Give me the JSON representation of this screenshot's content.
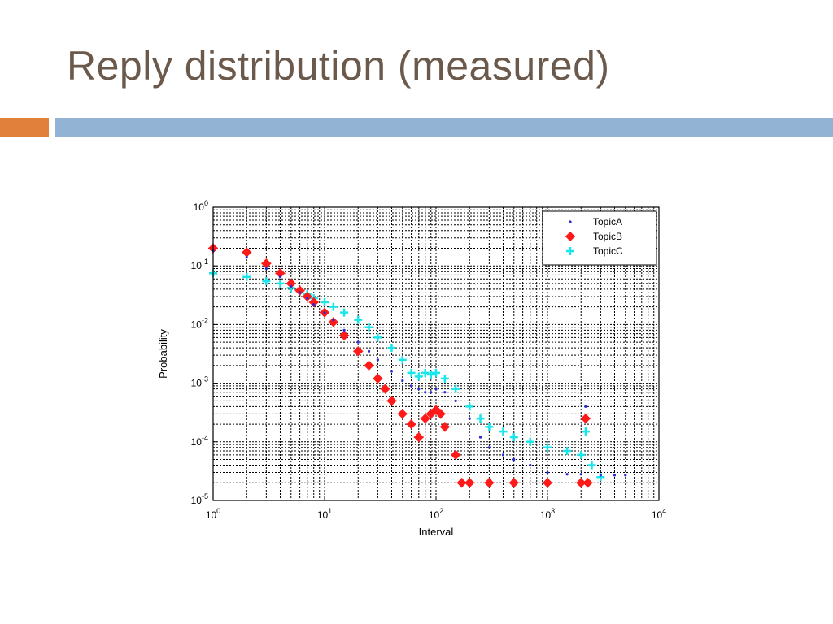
{
  "slide": {
    "title": "Reply distribution (measured)"
  },
  "colors": {
    "title": "#6b5a4c",
    "accent_orange": "#e0803b",
    "accent_blue": "#92b3d3"
  },
  "chart_data": {
    "type": "scatter",
    "title": "",
    "xlabel": "Interval",
    "ylabel": "Probability",
    "xscale": "log",
    "yscale": "log",
    "xlim": [
      1,
      10000
    ],
    "ylim": [
      1e-05,
      1
    ],
    "x_tick_labels": [
      {
        "base": "10",
        "exp": "0"
      },
      {
        "base": "10",
        "exp": "1"
      },
      {
        "base": "10",
        "exp": "2"
      },
      {
        "base": "10",
        "exp": "3"
      },
      {
        "base": "10",
        "exp": "4"
      }
    ],
    "y_tick_labels": [
      {
        "base": "10",
        "exp": "0"
      },
      {
        "base": "10",
        "exp": "-1"
      },
      {
        "base": "10",
        "exp": "-2"
      },
      {
        "base": "10",
        "exp": "-3"
      },
      {
        "base": "10",
        "exp": "-4"
      },
      {
        "base": "10",
        "exp": "-5"
      }
    ],
    "grid": true,
    "legend_position": "top-right",
    "series": [
      {
        "name": "TopicA",
        "marker": "dot",
        "color": "#2b2bd6",
        "points": [
          [
            1,
            0.18
          ],
          [
            2,
            0.14
          ],
          [
            3,
            0.09
          ],
          [
            4,
            0.065
          ],
          [
            5,
            0.045
          ],
          [
            6,
            0.035
          ],
          [
            7,
            0.028
          ],
          [
            8,
            0.022
          ],
          [
            10,
            0.016
          ],
          [
            12,
            0.012
          ],
          [
            15,
            0.008
          ],
          [
            20,
            0.005
          ],
          [
            25,
            0.0035
          ],
          [
            30,
            0.0025
          ],
          [
            40,
            0.0016
          ],
          [
            50,
            0.0011
          ],
          [
            60,
            0.0009
          ],
          [
            70,
            0.0008
          ],
          [
            80,
            0.0007
          ],
          [
            90,
            0.0007
          ],
          [
            100,
            0.0008
          ],
          [
            120,
            0.0007
          ],
          [
            150,
            0.0005
          ],
          [
            200,
            0.00025
          ],
          [
            250,
            0.00012
          ],
          [
            300,
            8e-05
          ],
          [
            400,
            6e-05
          ],
          [
            500,
            5e-05
          ],
          [
            700,
            4e-05
          ],
          [
            1000,
            3e-05
          ],
          [
            1500,
            2.8e-05
          ],
          [
            2000,
            2.8e-05
          ],
          [
            2200,
            0.0004
          ],
          [
            3000,
            2.7e-05
          ],
          [
            4000,
            2.7e-05
          ],
          [
            5000,
            2.7e-05
          ]
        ]
      },
      {
        "name": "TopicB",
        "marker": "diamond",
        "color": "#ff1a1a",
        "points": [
          [
            1,
            0.2
          ],
          [
            2,
            0.17
          ],
          [
            3,
            0.11
          ],
          [
            4,
            0.075
          ],
          [
            5,
            0.05
          ],
          [
            6,
            0.038
          ],
          [
            7,
            0.03
          ],
          [
            8,
            0.024
          ],
          [
            10,
            0.016
          ],
          [
            12,
            0.011
          ],
          [
            15,
            0.0065
          ],
          [
            20,
            0.0035
          ],
          [
            25,
            0.002
          ],
          [
            30,
            0.0012
          ],
          [
            35,
            0.0008
          ],
          [
            40,
            0.0005
          ],
          [
            50,
            0.0003
          ],
          [
            60,
            0.0002
          ],
          [
            70,
            0.00012
          ],
          [
            80,
            0.00025
          ],
          [
            90,
            0.0003
          ],
          [
            100,
            0.00035
          ],
          [
            110,
            0.0003
          ],
          [
            120,
            0.00018
          ],
          [
            150,
            6e-05
          ],
          [
            170,
            2e-05
          ],
          [
            200,
            2e-05
          ],
          [
            300,
            2e-05
          ],
          [
            500,
            2e-05
          ],
          [
            1000,
            2e-05
          ],
          [
            2000,
            2e-05
          ],
          [
            2200,
            0.00025
          ],
          [
            2300,
            2e-05
          ]
        ]
      },
      {
        "name": "TopicC",
        "marker": "plus",
        "color": "#19e5ea",
        "points": [
          [
            1,
            0.075
          ],
          [
            2,
            0.065
          ],
          [
            3,
            0.055
          ],
          [
            4,
            0.05
          ],
          [
            5,
            0.042
          ],
          [
            6,
            0.037
          ],
          [
            7,
            0.033
          ],
          [
            8,
            0.028
          ],
          [
            10,
            0.024
          ],
          [
            12,
            0.02
          ],
          [
            15,
            0.016
          ],
          [
            20,
            0.012
          ],
          [
            25,
            0.009
          ],
          [
            30,
            0.006
          ],
          [
            40,
            0.004
          ],
          [
            50,
            0.0025
          ],
          [
            60,
            0.0015
          ],
          [
            70,
            0.0013
          ],
          [
            80,
            0.0015
          ],
          [
            90,
            0.0014
          ],
          [
            100,
            0.0015
          ],
          [
            120,
            0.0012
          ],
          [
            150,
            0.0008
          ],
          [
            200,
            0.0004
          ],
          [
            250,
            0.00025
          ],
          [
            300,
            0.00018
          ],
          [
            400,
            0.00015
          ],
          [
            500,
            0.00012
          ],
          [
            700,
            0.0001
          ],
          [
            1000,
            8e-05
          ],
          [
            1500,
            7e-05
          ],
          [
            2000,
            6e-05
          ],
          [
            2200,
            0.00015
          ],
          [
            2500,
            4e-05
          ],
          [
            3000,
            2.5e-05
          ]
        ]
      }
    ]
  }
}
